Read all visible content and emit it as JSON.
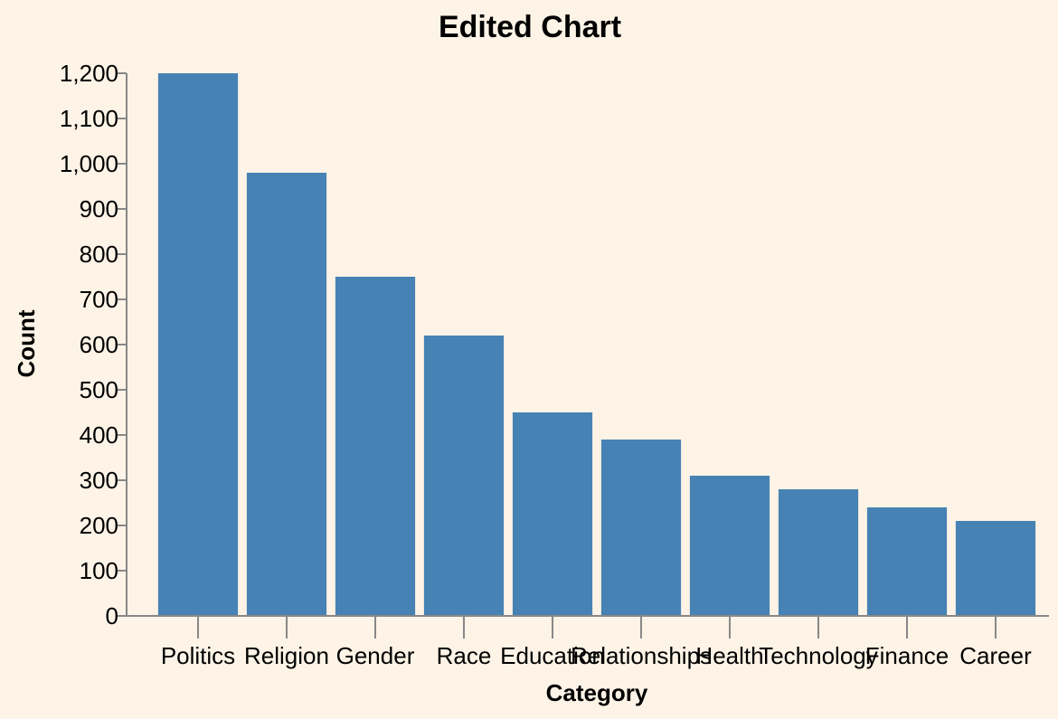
{
  "chart_data": {
    "type": "bar",
    "title": "Edited Chart",
    "xlabel": "Category",
    "ylabel": "Count",
    "categories": [
      "Politics",
      "Religion",
      "Gender",
      "Race",
      "Education",
      "Relationships",
      "Health",
      "Technology",
      "Finance",
      "Career"
    ],
    "values": [
      1200,
      980,
      750,
      620,
      450,
      390,
      310,
      280,
      240,
      210
    ],
    "ylim": [
      0,
      1200
    ],
    "yticks": [
      0,
      100,
      200,
      300,
      400,
      500,
      600,
      700,
      800,
      900,
      1000,
      1100,
      1200
    ],
    "ytick_labels": [
      "0",
      "100",
      "200",
      "300",
      "400",
      "500",
      "600",
      "700",
      "800",
      "900",
      "1,000",
      "1,100",
      "1,200"
    ],
    "grid": false,
    "legend": "none",
    "colors": {
      "bar": "#4682b4",
      "background": "#fdf3e6",
      "axis": "#888888"
    }
  }
}
